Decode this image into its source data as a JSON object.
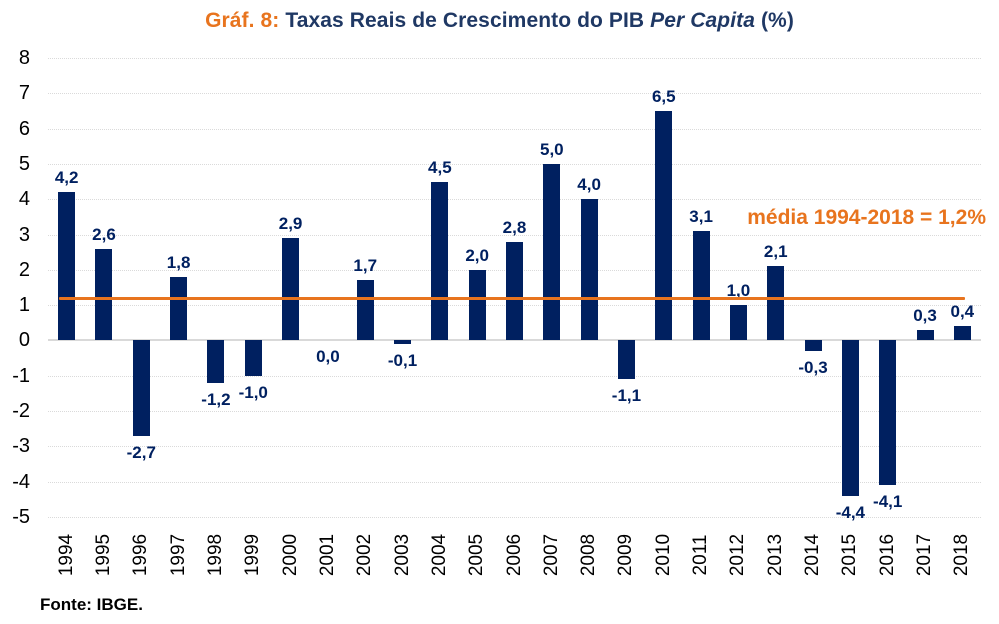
{
  "title": {
    "prefix": "Gráf. 8:",
    "main": " Taxas Reais de Crescimento do PIB ",
    "italic": "Per Capita",
    "suffix": " (%)"
  },
  "source": "Fonte: IBGE.",
  "colors": {
    "bar": "#002060",
    "value_label": "#002060",
    "title_navy": "#1F3864",
    "accent_orange": "#E8741E",
    "gridline": "#DADADA",
    "zero_line": "#D9D9D9",
    "axis_text": "#000000",
    "background": "#FFFFFF"
  },
  "chart_data": {
    "type": "bar",
    "title": "Gráf. 8: Taxas Reais de Crescimento do PIB Per Capita (%)",
    "categories": [
      "1994",
      "1995",
      "1996",
      "1997",
      "1998",
      "1999",
      "2000",
      "2001",
      "2002",
      "2003",
      "2004",
      "2005",
      "2006",
      "2007",
      "2008",
      "2009",
      "2010",
      "2011",
      "2012",
      "2013",
      "2014",
      "2015",
      "2016",
      "2017",
      "2018"
    ],
    "values": [
      4.2,
      2.6,
      -2.7,
      1.8,
      -1.2,
      -1.0,
      2.9,
      0.0,
      1.7,
      -0.1,
      4.5,
      2.0,
      2.8,
      5.0,
      4.0,
      -1.1,
      6.5,
      3.1,
      1.0,
      2.1,
      -0.3,
      -4.4,
      -4.1,
      0.3,
      0.4
    ],
    "value_labels": [
      "4,2",
      "2,6",
      "-2,7",
      "1,8",
      "-1,2",
      "-1,0",
      "2,9",
      "0,0",
      "1,7",
      "-0,1",
      "4,5",
      "2,0",
      "2,8",
      "5,0",
      "4,0",
      "-1,1",
      "6,5",
      "3,1",
      "1,0",
      "2,1",
      "-0,3",
      "-4,4",
      "-4,1",
      "0,3",
      "0,4"
    ],
    "xlabel": "",
    "ylabel": "",
    "ylim": [
      -5,
      8
    ],
    "yticks": [
      8,
      7,
      6,
      5,
      4,
      3,
      2,
      1,
      0,
      -1,
      -2,
      -3,
      -4,
      -5
    ],
    "grid": true,
    "legend": false,
    "average_line": {
      "value": 1.2,
      "label": "média 1994-2018 = 1,2%"
    }
  }
}
